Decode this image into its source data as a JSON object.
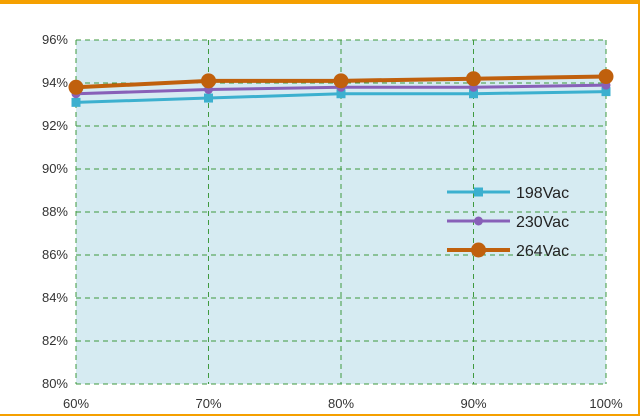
{
  "colors": {
    "frame": "#f5a000",
    "plot_background": "#d6ebf2",
    "grid": "#3f9a3f"
  },
  "chart_data": {
    "type": "line",
    "title": "",
    "xlabel": "",
    "ylabel": "",
    "categories": [
      "60%",
      "70%",
      "80%",
      "90%",
      "100%"
    ],
    "y_ticks": [
      "80%",
      "82%",
      "84%",
      "86%",
      "88%",
      "90%",
      "92%",
      "94%",
      "96%"
    ],
    "ylim": [
      80,
      96
    ],
    "y_unit": "%",
    "grid": true,
    "grid_style": "dashed",
    "legend_position": "right",
    "series": [
      {
        "name": "198Vac",
        "values": [
          93.1,
          93.3,
          93.5,
          93.5,
          93.6
        ],
        "color": "#3cb0cf",
        "marker": "square"
      },
      {
        "name": "230Vac",
        "values": [
          93.5,
          93.7,
          93.8,
          93.8,
          93.9
        ],
        "color": "#8860b8",
        "marker": "circle"
      },
      {
        "name": "264Vac",
        "values": [
          93.8,
          94.1,
          94.1,
          94.2,
          94.3
        ],
        "color": "#c0600d",
        "marker": "circle-large"
      }
    ]
  }
}
